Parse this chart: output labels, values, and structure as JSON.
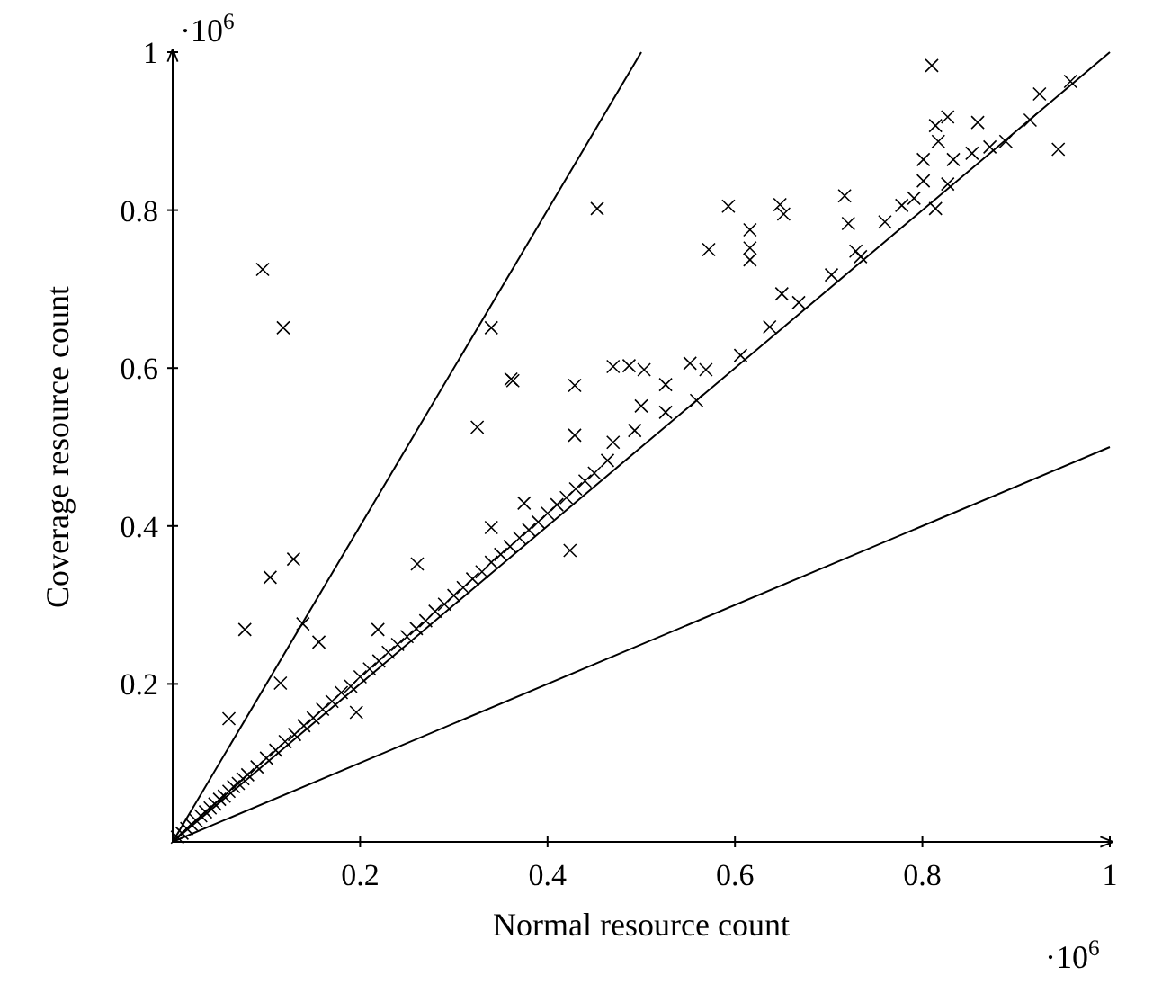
{
  "chart_data": {
    "type": "scatter",
    "xlabel": "Normal resource count",
    "ylabel": "Coverage resource count",
    "annotations": [
      "·10$^{6}$",
      "·10$^{6}$"
    ],
    "xlim": [
      0,
      1
    ],
    "ylim": [
      0,
      1
    ],
    "xticks": [
      0.2,
      0.4,
      0.6,
      0.8,
      1
    ],
    "yticks": [
      0.2,
      0.4,
      0.6,
      0.8,
      1
    ],
    "marker": "cross",
    "grid": false,
    "series": [
      {
        "color": "#000000",
        "x": [
          0.096,
          0.118,
          0.453,
          0.34,
          0.361,
          0.363,
          0.325,
          0.429,
          0.429,
          0.487,
          0.129,
          0.104,
          0.077,
          0.139,
          0.156,
          0.115,
          0.06,
          0.196,
          0.424,
          0.261,
          0.219,
          0.34,
          0.375,
          0.81,
          0.925,
          0.958,
          0.945,
          0.859,
          0.915,
          0.889,
          0.827,
          0.814,
          0.817,
          0.801,
          0.833,
          0.801,
          0.827,
          0.791,
          0.814,
          0.778,
          0.853,
          0.872,
          0.593,
          0.648,
          0.652,
          0.616,
          0.616,
          0.616,
          0.572,
          0.717,
          0.721,
          0.76,
          0.729,
          0.734,
          0.703,
          0.65,
          0.668,
          0.637,
          0.606,
          0.47,
          0.503,
          0.552,
          0.569,
          0.526,
          0.559,
          0.5,
          0.526,
          0.493,
          0.47,
          0.464,
          0.005,
          0.01,
          0.015,
          0.02,
          0.025,
          0.03,
          0.035,
          0.04,
          0.045,
          0.05,
          0.055,
          0.06,
          0.065,
          0.07,
          0.075,
          0.08,
          0.09,
          0.1,
          0.11,
          0.12,
          0.13,
          0.14,
          0.15,
          0.16,
          0.17,
          0.18,
          0.19,
          0.2,
          0.21,
          0.22,
          0.23,
          0.24,
          0.25,
          0.26,
          0.27,
          0.28,
          0.29,
          0.3,
          0.31,
          0.32,
          0.33,
          0.34,
          0.35,
          0.36,
          0.37,
          0.38,
          0.39,
          0.4,
          0.41,
          0.42,
          0.43,
          0.44,
          0.45
        ],
        "values": [
          0.725,
          0.651,
          0.802,
          0.651,
          0.586,
          0.584,
          0.525,
          0.578,
          0.515,
          0.603,
          0.358,
          0.335,
          0.269,
          0.276,
          0.253,
          0.201,
          0.156,
          0.164,
          0.369,
          0.352,
          0.269,
          0.398,
          0.429,
          0.983,
          0.947,
          0.963,
          0.877,
          0.911,
          0.914,
          0.887,
          0.918,
          0.907,
          0.887,
          0.864,
          0.864,
          0.837,
          0.833,
          0.815,
          0.802,
          0.806,
          0.872,
          0.88,
          0.805,
          0.807,
          0.795,
          0.775,
          0.752,
          0.737,
          0.75,
          0.818,
          0.783,
          0.785,
          0.748,
          0.741,
          0.718,
          0.694,
          0.683,
          0.652,
          0.616,
          0.602,
          0.598,
          0.606,
          0.598,
          0.579,
          0.559,
          0.552,
          0.544,
          0.521,
          0.506,
          0.483,
          0.006,
          0.011,
          0.017,
          0.022,
          0.027,
          0.033,
          0.038,
          0.043,
          0.048,
          0.054,
          0.058,
          0.064,
          0.07,
          0.074,
          0.08,
          0.085,
          0.095,
          0.106,
          0.116,
          0.127,
          0.136,
          0.147,
          0.157,
          0.168,
          0.178,
          0.189,
          0.197,
          0.209,
          0.219,
          0.229,
          0.24,
          0.25,
          0.26,
          0.27,
          0.28,
          0.292,
          0.301,
          0.312,
          0.322,
          0.333,
          0.342,
          0.354,
          0.364,
          0.374,
          0.385,
          0.395,
          0.405,
          0.416,
          0.427,
          0.436,
          0.447,
          0.457,
          0.467
        ]
      },
      {
        "type": "line",
        "marker": "none",
        "color": "#000000",
        "x": [
          0,
          0.5
        ],
        "values": [
          0,
          1
        ]
      },
      {
        "type": "line",
        "marker": "none",
        "color": "#000000",
        "x": [
          0,
          1
        ],
        "values": [
          0,
          1
        ]
      },
      {
        "type": "line",
        "marker": "none",
        "color": "#000000",
        "x": [
          0,
          1
        ],
        "values": [
          0,
          0.5
        ]
      }
    ]
  }
}
